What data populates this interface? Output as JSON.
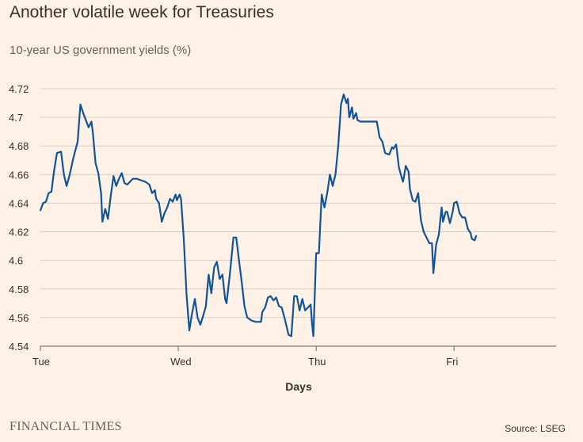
{
  "header": {
    "title": "Another volatile week for Treasuries",
    "subtitle": "10-year US government yields (%)"
  },
  "footer": {
    "brand": "FINANCIAL TIMES",
    "source": "Source: LSEG"
  },
  "colors": {
    "background": "#fff1e5",
    "line": "#0f5499",
    "grid": "#d9cdc3",
    "axis": "#66605c",
    "text": "#33302e"
  },
  "chart_data": {
    "type": "line",
    "title": "Another volatile week for Treasuries",
    "subtitle": "10-year US government yields (%)",
    "xlabel": "Days",
    "ylabel": "",
    "xlim": [
      0,
      3.74
    ],
    "ylim": [
      4.54,
      4.72
    ],
    "yticks": [
      4.54,
      4.56,
      4.58,
      4.6,
      4.62,
      4.64,
      4.66,
      4.68,
      4.7,
      4.72
    ],
    "ytick_labels": [
      "4.54",
      "4.56",
      "4.58",
      "4.6",
      "4.62",
      "4.64",
      "4.66",
      "4.68",
      "4.7",
      "4.72"
    ],
    "xticks": [
      0,
      1,
      2,
      3
    ],
    "xtick_labels": [
      "Tue",
      "Wed",
      "Thu",
      "Fri"
    ],
    "grid": true,
    "series": [
      {
        "values": [
          [
            0.0,
            4.635
          ],
          [
            0.02,
            4.64
          ],
          [
            0.04,
            4.641
          ],
          [
            0.06,
            4.647
          ],
          [
            0.08,
            4.648
          ],
          [
            0.1,
            4.663
          ],
          [
            0.12,
            4.675
          ],
          [
            0.15,
            4.676
          ],
          [
            0.17,
            4.66
          ],
          [
            0.19,
            4.652
          ],
          [
            0.21,
            4.659
          ],
          [
            0.24,
            4.672
          ],
          [
            0.27,
            4.683
          ],
          [
            0.29,
            4.709
          ],
          [
            0.31,
            4.703
          ],
          [
            0.33,
            4.698
          ],
          [
            0.35,
            4.693
          ],
          [
            0.37,
            4.697
          ],
          [
            0.38,
            4.69
          ],
          [
            0.4,
            4.668
          ],
          [
            0.42,
            4.661
          ],
          [
            0.44,
            4.647
          ],
          [
            0.45,
            4.627
          ],
          [
            0.47,
            4.636
          ],
          [
            0.49,
            4.629
          ],
          [
            0.51,
            4.645
          ],
          [
            0.53,
            4.659
          ],
          [
            0.55,
            4.652
          ],
          [
            0.57,
            4.657
          ],
          [
            0.59,
            4.661
          ],
          [
            0.61,
            4.654
          ],
          [
            0.63,
            4.653
          ],
          [
            0.65,
            4.655
          ],
          [
            0.67,
            4.657
          ],
          [
            0.7,
            4.657
          ],
          [
            0.73,
            4.656
          ],
          [
            0.76,
            4.655
          ],
          [
            0.79,
            4.653
          ],
          [
            0.81,
            4.647
          ],
          [
            0.83,
            4.649
          ],
          [
            0.84,
            4.643
          ],
          [
            0.86,
            4.64
          ],
          [
            0.87,
            4.634
          ],
          [
            0.88,
            4.627
          ],
          [
            0.9,
            4.633
          ],
          [
            0.92,
            4.637
          ],
          [
            0.94,
            4.643
          ],
          [
            0.96,
            4.641
          ],
          [
            0.98,
            4.646
          ],
          [
            0.99,
            4.642
          ],
          [
            1.01,
            4.646
          ],
          [
            1.02,
            4.643
          ],
          [
            1.04,
            4.615
          ],
          [
            1.06,
            4.576
          ],
          [
            1.08,
            4.551
          ],
          [
            1.1,
            4.563
          ],
          [
            1.12,
            4.573
          ],
          [
            1.14,
            4.56
          ],
          [
            1.16,
            4.555
          ],
          [
            1.18,
            4.561
          ],
          [
            1.2,
            4.568
          ],
          [
            1.21,
            4.579
          ],
          [
            1.22,
            4.59
          ],
          [
            1.24,
            4.577
          ],
          [
            1.26,
            4.595
          ],
          [
            1.28,
            4.599
          ],
          [
            1.3,
            4.587
          ],
          [
            1.32,
            4.59
          ],
          [
            1.34,
            4.573
          ],
          [
            1.35,
            4.57
          ],
          [
            1.37,
            4.587
          ],
          [
            1.38,
            4.596
          ],
          [
            1.4,
            4.616
          ],
          [
            1.42,
            4.616
          ],
          [
            1.44,
            4.6
          ],
          [
            1.46,
            4.585
          ],
          [
            1.48,
            4.568
          ],
          [
            1.5,
            4.56
          ],
          [
            1.53,
            4.558
          ],
          [
            1.56,
            4.557
          ],
          [
            1.6,
            4.557
          ],
          [
            1.61,
            4.564
          ],
          [
            1.63,
            4.567
          ],
          [
            1.65,
            4.574
          ],
          [
            1.67,
            4.575
          ],
          [
            1.69,
            4.572
          ],
          [
            1.71,
            4.574
          ],
          [
            1.73,
            4.568
          ],
          [
            1.75,
            4.567
          ],
          [
            1.77,
            4.56
          ],
          [
            1.8,
            4.548
          ],
          [
            1.82,
            4.547
          ],
          [
            1.84,
            4.575
          ],
          [
            1.86,
            4.575
          ],
          [
            1.88,
            4.565
          ],
          [
            1.9,
            4.573
          ],
          [
            1.92,
            4.565
          ],
          [
            1.94,
            4.567
          ],
          [
            1.96,
            4.569
          ],
          [
            1.97,
            4.556
          ],
          [
            1.98,
            4.547
          ],
          [
            2.0,
            4.605
          ],
          [
            2.02,
            4.605
          ],
          [
            2.04,
            4.646
          ],
          [
            2.06,
            4.637
          ],
          [
            2.08,
            4.647
          ],
          [
            2.1,
            4.66
          ],
          [
            2.12,
            4.652
          ],
          [
            2.14,
            4.66
          ],
          [
            2.16,
            4.68
          ],
          [
            2.18,
            4.709
          ],
          [
            2.2,
            4.716
          ],
          [
            2.22,
            4.71
          ],
          [
            2.23,
            4.713
          ],
          [
            2.24,
            4.7
          ],
          [
            2.26,
            4.707
          ],
          [
            2.27,
            4.699
          ],
          [
            2.29,
            4.703
          ],
          [
            2.3,
            4.698
          ],
          [
            2.32,
            4.697
          ],
          [
            2.35,
            4.697
          ],
          [
            2.4,
            4.697
          ],
          [
            2.44,
            4.697
          ],
          [
            2.46,
            4.686
          ],
          [
            2.48,
            4.683
          ],
          [
            2.5,
            4.675
          ],
          [
            2.53,
            4.674
          ],
          [
            2.55,
            4.679
          ],
          [
            2.56,
            4.678
          ],
          [
            2.58,
            4.681
          ],
          [
            2.6,
            4.665
          ],
          [
            2.62,
            4.658
          ],
          [
            2.63,
            4.655
          ],
          [
            2.65,
            4.666
          ],
          [
            2.67,
            4.662
          ],
          [
            2.68,
            4.65
          ],
          [
            2.7,
            4.642
          ],
          [
            2.72,
            4.641
          ],
          [
            2.74,
            4.647
          ],
          [
            2.76,
            4.628
          ],
          [
            2.78,
            4.62
          ],
          [
            2.8,
            4.616
          ],
          [
            2.82,
            4.612
          ],
          [
            2.84,
            4.612
          ],
          [
            2.85,
            4.591
          ],
          [
            2.87,
            4.611
          ],
          [
            2.89,
            4.618
          ],
          [
            2.91,
            4.637
          ],
          [
            2.92,
            4.627
          ],
          [
            2.94,
            4.634
          ],
          [
            2.95,
            4.634
          ],
          [
            2.97,
            4.626
          ],
          [
            2.99,
            4.634
          ],
          [
            3.0,
            4.64
          ],
          [
            3.02,
            4.641
          ],
          [
            3.04,
            4.633
          ],
          [
            3.06,
            4.63
          ],
          [
            3.08,
            4.63
          ],
          [
            3.1,
            4.622
          ],
          [
            3.12,
            4.619
          ],
          [
            3.13,
            4.615
          ],
          [
            3.15,
            4.614
          ],
          [
            3.16,
            4.617
          ]
        ]
      }
    ]
  }
}
